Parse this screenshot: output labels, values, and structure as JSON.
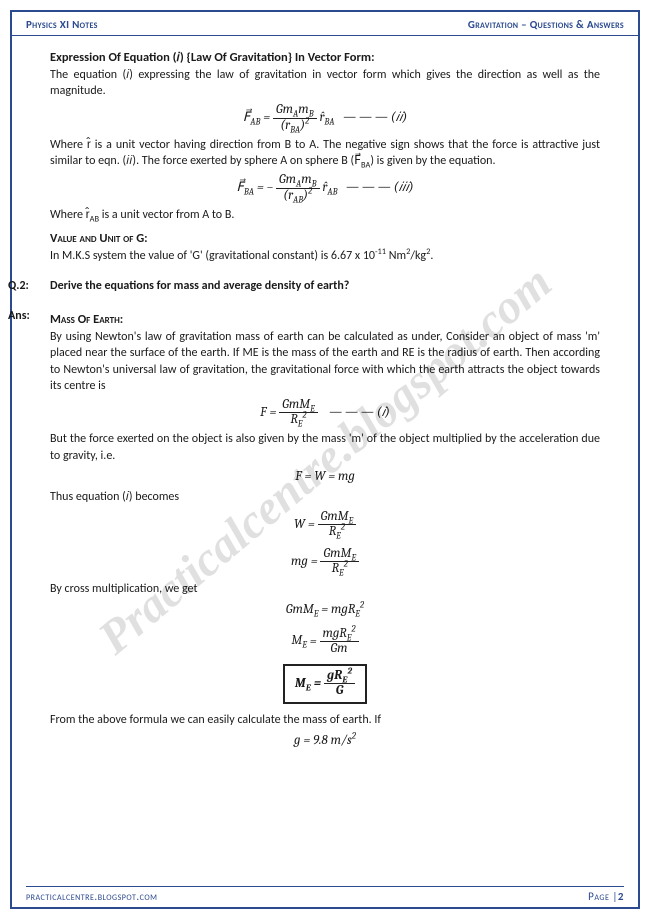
{
  "header": {
    "left": "Physics XI Notes",
    "right": "Gravitation – Questions & Answers"
  },
  "footer": {
    "left": "practicalcentre.blogspot.com",
    "right_label": "Page |",
    "right_num": "2"
  },
  "watermark": "Practicalcentre.blogspot.com",
  "s1": {
    "title": "Expression Of Equation (𝑖) {Law Of Gravitation} In Vector Form:",
    "p1": "The equation (𝑖) expressing the law of gravitation in vector form which gives the direction as well as the magnitude.",
    "eq2_lhs": "F⃗",
    "eq2_sub": "AB",
    "eq2_num": "Gm<sub>A</sub>m<sub>B</sub>",
    "eq2_den": "(r<sub>BA</sub>)<sup>2</sup>",
    "eq2_unit": "r̂<sub>BA</sub>",
    "eq2_tag": "— — — (𝑖𝑖)",
    "p2": "Where r̂ is a unit vector having direction from B to A. The negative sign shows that the force is attractive just similar to eqn. (𝑖𝑖). The force exerted by sphere A on sphere B (F⃗<sub>BA</sub>) is given by the equation.",
    "eq3_lhs": "F⃗",
    "eq3_sub": "BA",
    "eq3_num": "Gm<sub>A</sub>m<sub>B</sub>",
    "eq3_den": "(r<sub>AB</sub>)<sup>2</sup>",
    "eq3_unit": "r̂<sub>AB</sub>",
    "eq3_tag": "— — — (𝑖𝑖𝑖)",
    "p3": "Where r̂<sub>AB</sub> is a unit vector from A to B."
  },
  "s2": {
    "title": "Value and Unit of G:",
    "p1_a": "In M.K.S system the value of 'G' (gravitational constant) is 6.67 x 10",
    "p1_exp": "-11",
    "p1_b": " Nm",
    "p1_sup2": "2",
    "p1_c": "/kg",
    "p1_sup3": "2",
    "p1_d": "."
  },
  "q2": {
    "label": "Q.2:",
    "text": "Derive the equations for mass and average density of earth?"
  },
  "ans": {
    "label": "Ans:",
    "title": "Mass Of Earth:",
    "p1": "By using Newton's law of gravitation mass of earth can be calculated as under, Consider an object of mass 'm' placed near the surface of the earth. If ME is the mass of the earth and RE is the radius of earth. Then according to Newton's universal law of gravitation, the gravitational force with which the earth attracts the object towards its centre is",
    "eqA_lhs": "F",
    "eqA_num": "GmM<sub>E</sub>",
    "eqA_den": "R<sub>E</sub><sup>2</sup>",
    "eqA_tag": "— — — (𝑖)",
    "p2": "But the force exerted on the object is also given by the mass 'm' of the object multiplied by the acceleration due to gravity, i.e.",
    "eqB": "F = W = mg",
    "p3": "Thus equation (𝑖) becomes",
    "eqC_lhs": "W",
    "eqC_num": "GmM<sub>E</sub>",
    "eqC_den": "R<sub>E</sub><sup>2</sup>",
    "eqD_lhs": "mg",
    "eqD_num": "GmM<sub>E</sub>",
    "eqD_den": "R<sub>E</sub><sup>2</sup>",
    "p4": "By cross multiplication, we get",
    "eqE": "GmM<sub>E</sub> = mgR<sub>E</sub><sup>2</sup>",
    "eqF_lhs": "M<sub>E</sub>",
    "eqF_num": "mgR<sub>E</sub><sup>2</sup>",
    "eqF_den": "Gm",
    "eqG_lhs": "M<sub>E</sub>",
    "eqG_num": "gR<sub>E</sub><sup>2</sup>",
    "eqG_den": "G",
    "p5": "From the above formula we can easily calculate the mass of earth. If",
    "eqH": "g = 9.8 m/s<sup>2</sup>"
  },
  "colors": {
    "accent": "#2b4a8f"
  }
}
